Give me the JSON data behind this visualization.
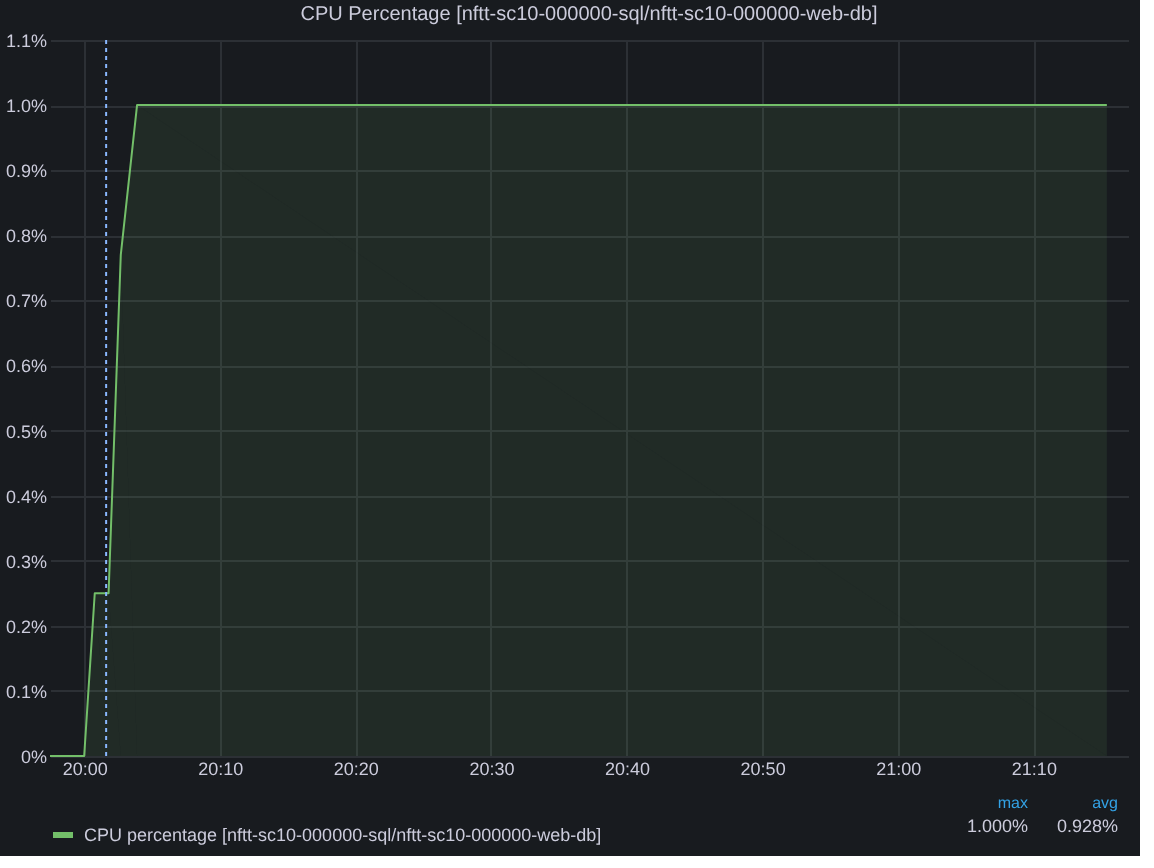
{
  "chart_data": {
    "type": "area",
    "title": "CPU Percentage [nftt-sc10-000000-sql/nftt-sc10-000000-web-db]",
    "x": [
      19.958,
      20.0,
      20.013,
      20.03,
      20.045,
      20.065,
      21.257
    ],
    "series": [
      {
        "name": "CPU percentage [nftt-sc10-000000-sql/nftt-sc10-000000-web-db]",
        "color": "#73bf69",
        "values": [
          0,
          0,
          0.25,
          0.25,
          0.77,
          1.0,
          1.0
        ]
      }
    ],
    "xlim": [
      19.958,
      21.283
    ],
    "xticks": [
      {
        "value": 20.0,
        "label": "20:00"
      },
      {
        "value": 20.1667,
        "label": "20:10"
      },
      {
        "value": 20.3333,
        "label": "20:20"
      },
      {
        "value": 20.5,
        "label": "20:30"
      },
      {
        "value": 20.6667,
        "label": "20:40"
      },
      {
        "value": 20.8333,
        "label": "20:50"
      },
      {
        "value": 21.0,
        "label": "21:00"
      },
      {
        "value": 21.1667,
        "label": "21:10"
      }
    ],
    "ylim": [
      0,
      1.1
    ],
    "yticks": [
      {
        "value": 0,
        "label": "0%"
      },
      {
        "value": 0.1,
        "label": "0.1%"
      },
      {
        "value": 0.2,
        "label": "0.2%"
      },
      {
        "value": 0.3,
        "label": "0.3%"
      },
      {
        "value": 0.4,
        "label": "0.4%"
      },
      {
        "value": 0.5,
        "label": "0.5%"
      },
      {
        "value": 0.6,
        "label": "0.6%"
      },
      {
        "value": 0.7,
        "label": "0.7%"
      },
      {
        "value": 0.8,
        "label": "0.8%"
      },
      {
        "value": 0.9,
        "label": "0.9%"
      },
      {
        "value": 1.0,
        "label": "1.0%"
      },
      {
        "value": 1.1,
        "label": "1.1%"
      }
    ],
    "ref_lines": [
      {
        "axis": "x",
        "value": 20.027,
        "color": "#8ab8ff",
        "line_style": "dotted"
      }
    ],
    "annotations": [
      "max",
      "avg",
      "1.000%",
      "0.928%"
    ],
    "grid": true,
    "legend": "bottom",
    "line_style": "solid"
  }
}
